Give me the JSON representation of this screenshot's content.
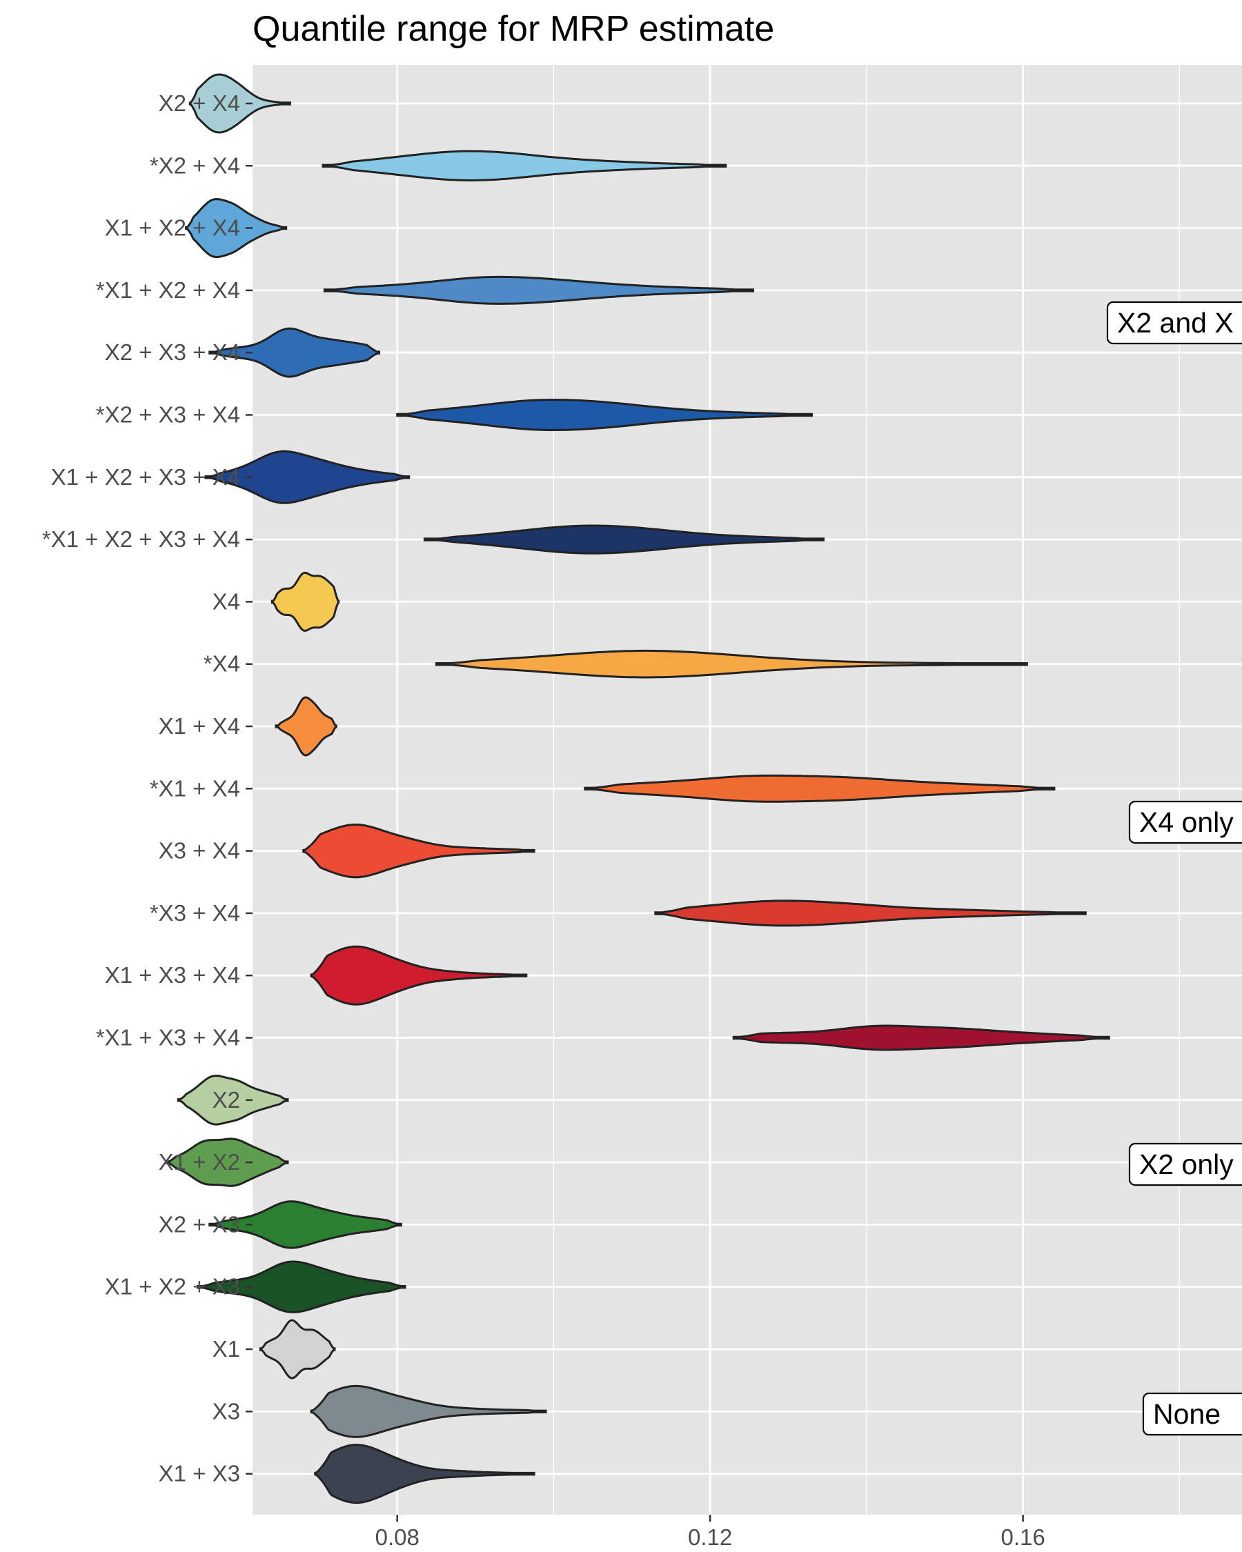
{
  "chart_data": {
    "type": "violin",
    "title": "Quantile range for MRP estimate",
    "xlabel": "",
    "ylabel": "",
    "xlim": [
      0.0615,
      0.188
    ],
    "x_ticks": [
      0.08,
      0.12,
      0.16
    ],
    "x_tick_labels": [
      "0.08",
      "0.12",
      "0.16"
    ],
    "x_minor_ticks": [
      0.06,
      0.1,
      0.14,
      0.18
    ],
    "grid": true,
    "legend": "none",
    "categories": [
      "X2 + X4",
      "*X2 + X4",
      "X1 + X2 + X4",
      "*X1 + X2 + X4",
      "X2 + X3 + X4",
      "*X2 + X3 + X4",
      "X1 + X2 + X3 + X4",
      "*X1 + X2 + X3 + X4",
      "X4",
      "*X4",
      "X1 + X4",
      "*X1 + X4",
      "X3 + X4",
      "*X3 + X4",
      "X1 + X3 + X4",
      "*X1 + X3 + X4",
      "X2",
      "X1 + X2",
      "X2 + X3",
      "X1 + X2 + X3",
      "X1",
      "X3",
      "X1 + X3"
    ],
    "series": [
      {
        "category": "X2 + X4",
        "min": 0.0535,
        "max": 0.0663,
        "peaks": [
          [
            0.0545,
            0.2
          ],
          [
            0.0565,
            0.55
          ],
          [
            0.0585,
            0.45
          ],
          [
            0.0605,
            0.25
          ],
          [
            0.0635,
            0.05
          ]
        ],
        "color": "#a9cfd6"
      },
      {
        "category": "*X2 + X4",
        "min": 0.0705,
        "max": 0.122,
        "peaks": [
          [
            0.078,
            0.06
          ],
          [
            0.087,
            0.14
          ],
          [
            0.095,
            0.11
          ],
          [
            0.105,
            0.05
          ],
          [
            0.115,
            0.02
          ]
        ],
        "color": "#87c9e6"
      },
      {
        "category": "X1 + X2 + X4",
        "min": 0.053,
        "max": 0.0658,
        "peaks": [
          [
            0.0545,
            0.18
          ],
          [
            0.0565,
            0.55
          ],
          [
            0.059,
            0.45
          ],
          [
            0.0615,
            0.2
          ],
          [
            0.064,
            0.05
          ]
        ],
        "color": "#5ea7d8"
      },
      {
        "category": "*X1 + X2 + X4",
        "min": 0.0707,
        "max": 0.1255,
        "peaks": [
          [
            0.078,
            0.04
          ],
          [
            0.09,
            0.12
          ],
          [
            0.099,
            0.09
          ],
          [
            0.108,
            0.04
          ],
          [
            0.118,
            0.02
          ]
        ],
        "color": "#4d8ac6"
      },
      {
        "category": "X2 + X3 + X4",
        "min": 0.056,
        "max": 0.0777,
        "peaks": [
          [
            0.06,
            0.1
          ],
          [
            0.066,
            0.5
          ],
          [
            0.071,
            0.22
          ],
          [
            0.075,
            0.12
          ],
          [
            0.077,
            0.04
          ]
        ],
        "color": "#2e6db5"
      },
      {
        "category": "*X2 + X3 + X4",
        "min": 0.08,
        "max": 0.133,
        "peaks": [
          [
            0.087,
            0.06
          ],
          [
            0.097,
            0.16
          ],
          [
            0.106,
            0.13
          ],
          [
            0.115,
            0.05
          ],
          [
            0.125,
            0.02
          ]
        ],
        "color": "#1e59a8"
      },
      {
        "category": "X1 + X2 + X3 + X4",
        "min": 0.0555,
        "max": 0.0815,
        "peaks": [
          [
            0.06,
            0.12
          ],
          [
            0.065,
            0.5
          ],
          [
            0.07,
            0.28
          ],
          [
            0.075,
            0.12
          ],
          [
            0.08,
            0.04
          ]
        ],
        "color": "#1f4591"
      },
      {
        "category": "*X1 + X2 + X3 + X4",
        "min": 0.0835,
        "max": 0.1345,
        "peaks": [
          [
            0.093,
            0.05
          ],
          [
            0.102,
            0.12
          ],
          [
            0.11,
            0.1
          ],
          [
            0.118,
            0.04
          ],
          [
            0.127,
            0.02
          ]
        ],
        "color": "#1c3466"
      },
      {
        "category": "X4",
        "min": 0.064,
        "max": 0.0725,
        "peaks": [
          [
            0.0655,
            0.3
          ],
          [
            0.068,
            0.65
          ],
          [
            0.07,
            0.5
          ],
          [
            0.0715,
            0.25
          ],
          [
            0.0722,
            0.08
          ]
        ],
        "color": "#f5c850"
      },
      {
        "category": "*X4",
        "min": 0.085,
        "max": 0.1605,
        "peaks": [
          [
            0.095,
            0.04
          ],
          [
            0.108,
            0.1
          ],
          [
            0.118,
            0.08
          ],
          [
            0.13,
            0.03
          ],
          [
            0.148,
            0.01
          ]
        ],
        "color": "#f5a843"
      },
      {
        "category": "X1 + X4",
        "min": 0.0645,
        "max": 0.0722,
        "peaks": [
          [
            0.066,
            0.18
          ],
          [
            0.068,
            0.75
          ],
          [
            0.0695,
            0.5
          ],
          [
            0.0712,
            0.18
          ],
          [
            0.072,
            0.06
          ]
        ],
        "color": "#f78e3d"
      },
      {
        "category": "*X1 + X4",
        "min": 0.104,
        "max": 0.164,
        "peaks": [
          [
            0.112,
            0.05
          ],
          [
            0.125,
            0.12
          ],
          [
            0.137,
            0.1
          ],
          [
            0.148,
            0.04
          ],
          [
            0.157,
            0.02
          ]
        ],
        "color": "#f06c33"
      },
      {
        "category": "X3 + X4",
        "min": 0.068,
        "max": 0.0975,
        "peaks": [
          [
            0.07,
            0.22
          ],
          [
            0.075,
            0.5
          ],
          [
            0.081,
            0.22
          ],
          [
            0.088,
            0.06
          ],
          [
            0.094,
            0.03
          ]
        ],
        "color": "#ec4b34"
      },
      {
        "category": "*X3 + X4",
        "min": 0.113,
        "max": 0.168,
        "peaks": [
          [
            0.118,
            0.04
          ],
          [
            0.128,
            0.1
          ],
          [
            0.138,
            0.07
          ],
          [
            0.15,
            0.03
          ],
          [
            0.16,
            0.01
          ]
        ],
        "color": "#d93b2f"
      },
      {
        "category": "X1 + X3 + X4",
        "min": 0.069,
        "max": 0.0965,
        "peaks": [
          [
            0.071,
            0.25
          ],
          [
            0.075,
            0.55
          ],
          [
            0.08,
            0.25
          ],
          [
            0.086,
            0.08
          ],
          [
            0.092,
            0.03
          ]
        ],
        "color": "#cf1d2f"
      },
      {
        "category": "*X1 + X3 + X4",
        "min": 0.123,
        "max": 0.171,
        "peaks": [
          [
            0.128,
            0.04
          ],
          [
            0.141,
            0.1
          ],
          [
            0.151,
            0.07
          ],
          [
            0.16,
            0.03
          ],
          [
            0.167,
            0.01
          ]
        ],
        "color": "#a0122f"
      },
      {
        "category": "X2",
        "min": 0.052,
        "max": 0.066,
        "peaks": [
          [
            0.054,
            0.12
          ],
          [
            0.0565,
            0.45
          ],
          [
            0.0595,
            0.35
          ],
          [
            0.0625,
            0.15
          ],
          [
            0.065,
            0.05
          ]
        ],
        "color": "#b5cfa3"
      },
      {
        "category": "X1 + X2",
        "min": 0.0505,
        "max": 0.066,
        "peaks": [
          [
            0.0525,
            0.1
          ],
          [
            0.0555,
            0.4
          ],
          [
            0.059,
            0.42
          ],
          [
            0.062,
            0.2
          ],
          [
            0.0645,
            0.06
          ]
        ],
        "color": "#5f9e4f"
      },
      {
        "category": "X2 + X3",
        "min": 0.056,
        "max": 0.0805,
        "peaks": [
          [
            0.06,
            0.1
          ],
          [
            0.066,
            0.45
          ],
          [
            0.071,
            0.22
          ],
          [
            0.076,
            0.1
          ],
          [
            0.079,
            0.03
          ]
        ],
        "color": "#2a7f30"
      },
      {
        "category": "X1 + X2 + X3",
        "min": 0.0545,
        "max": 0.081,
        "peaks": [
          [
            0.059,
            0.12
          ],
          [
            0.066,
            0.5
          ],
          [
            0.071,
            0.25
          ],
          [
            0.076,
            0.1
          ],
          [
            0.08,
            0.03
          ]
        ],
        "color": "#1a5228"
      },
      {
        "category": "X1",
        "min": 0.0625,
        "max": 0.072,
        "peaks": [
          [
            0.064,
            0.2
          ],
          [
            0.0665,
            0.7
          ],
          [
            0.069,
            0.4
          ],
          [
            0.0705,
            0.15
          ],
          [
            0.0715,
            0.05
          ]
        ],
        "color": "#d2d2d2"
      },
      {
        "category": "X3",
        "min": 0.069,
        "max": 0.099,
        "peaks": [
          [
            0.071,
            0.18
          ],
          [
            0.075,
            0.45
          ],
          [
            0.081,
            0.22
          ],
          [
            0.088,
            0.06
          ],
          [
            0.095,
            0.03
          ]
        ],
        "color": "#7f8a8f"
      },
      {
        "category": "X1 + X3",
        "min": 0.0695,
        "max": 0.0975,
        "peaks": [
          [
            0.071,
            0.22
          ],
          [
            0.075,
            0.55
          ],
          [
            0.08,
            0.22
          ],
          [
            0.087,
            0.06
          ],
          [
            0.093,
            0.02
          ]
        ],
        "color": "#3b4250"
      }
    ],
    "annotations": [
      {
        "text": "X2 and X",
        "anchor_category": "*X1 + X2 + X4"
      },
      {
        "text": "X4 only",
        "anchor_category": "*X1 + X4"
      },
      {
        "text": "X2 only",
        "anchor_category": "X1 + X2"
      },
      {
        "text": "None",
        "anchor_category": "X3"
      }
    ],
    "colors": {
      "panel": "#e5e5e5",
      "grid": "#ffffff",
      "outline": "#222222",
      "tick_text": "#4d4d4d"
    }
  }
}
